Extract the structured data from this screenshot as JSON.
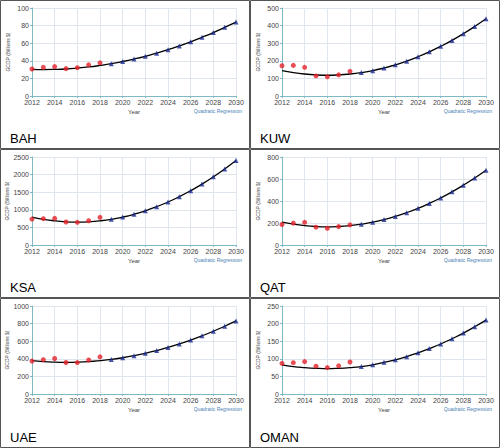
{
  "chart_data": [
    {
      "type": "line",
      "title": "BAH",
      "x_label": "Year",
      "y_label": "GCDP (Billions $)",
      "annotation": "Quadratic Regression",
      "x": [
        2012,
        2013,
        2014,
        2015,
        2016,
        2017,
        2018,
        2019,
        2020,
        2021,
        2022,
        2023,
        2024,
        2025,
        2026,
        2027,
        2028,
        2029,
        2030
      ],
      "xlim": [
        2012,
        2030
      ],
      "xticks": [
        2012,
        2014,
        2016,
        2018,
        2020,
        2022,
        2024,
        2026,
        2028,
        2030
      ],
      "ylim": [
        0,
        100
      ],
      "yticks": [
        0,
        20,
        40,
        60,
        80,
        100
      ],
      "grid": true,
      "series": [
        {
          "type": "scatter",
          "color": "#e3222a",
          "marker": "circle",
          "values": [
            30.7,
            32.5,
            33.4,
            31.1,
            32.2,
            35.4,
            37.7,
            null,
            null,
            null,
            null,
            null,
            null,
            null,
            null,
            null,
            null,
            null,
            null
          ]
        },
        {
          "type": "scatter",
          "color": "#1a2b8f",
          "marker": "triangle",
          "values": [
            null,
            null,
            null,
            null,
            null,
            null,
            null,
            36.7,
            39.2,
            42,
            45.1,
            48.7,
            52.6,
            56.9,
            61.6,
            66.7,
            72.1,
            78,
            84
          ]
        },
        {
          "type": "line",
          "color": "#000000",
          "marker": "none",
          "line_style": "solid",
          "values": [
            30.2,
            30,
            30.2,
            30.7,
            31.7,
            33,
            34.7,
            36.7,
            39.2,
            42,
            45.1,
            48.7,
            52.6,
            56.9,
            61.6,
            66.7,
            72.1,
            78,
            84
          ]
        }
      ]
    },
    {
      "type": "line",
      "title": "KUW",
      "x_label": "Year",
      "y_label": "GCDP (Billions $)",
      "annotation": "Quadratic Regression",
      "x": [
        2012,
        2013,
        2014,
        2015,
        2016,
        2017,
        2018,
        2019,
        2020,
        2021,
        2022,
        2023,
        2024,
        2025,
        2026,
        2027,
        2028,
        2029,
        2030
      ],
      "xlim": [
        2012,
        2030
      ],
      "xticks": [
        2012,
        2014,
        2016,
        2018,
        2020,
        2022,
        2024,
        2026,
        2028,
        2030
      ],
      "ylim": [
        0,
        500
      ],
      "yticks": [
        0,
        100,
        200,
        300,
        400,
        500
      ],
      "grid": true,
      "series": [
        {
          "type": "scatter",
          "color": "#e3222a",
          "marker": "circle",
          "values": [
            172,
            174,
            163,
            114,
            109,
            120,
            140,
            null,
            null,
            null,
            null,
            null,
            null,
            null,
            null,
            null,
            null,
            null,
            null
          ]
        },
        {
          "type": "scatter",
          "color": "#1a2b8f",
          "marker": "triangle",
          "values": [
            null,
            null,
            null,
            null,
            null,
            null,
            null,
            133,
            144,
            159,
            177,
            198,
            223,
            251,
            282,
            316,
            354,
            395,
            439
          ]
        },
        {
          "type": "line",
          "color": "#000000",
          "marker": "none",
          "line_style": "solid",
          "values": [
            144,
            133,
            125,
            120,
            118,
            120,
            125,
            133,
            144,
            159,
            177,
            198,
            223,
            251,
            282,
            316,
            354,
            395,
            439
          ]
        }
      ]
    },
    {
      "type": "line",
      "title": "KSA",
      "x_label": "Year",
      "y_label": "GCDP (Billions $)",
      "annotation": "Quadratic Regression",
      "x": [
        2012,
        2013,
        2014,
        2015,
        2016,
        2017,
        2018,
        2019,
        2020,
        2021,
        2022,
        2023,
        2024,
        2025,
        2026,
        2027,
        2028,
        2029,
        2030
      ],
      "xlim": [
        2012,
        2030
      ],
      "xticks": [
        2012,
        2014,
        2016,
        2018,
        2020,
        2022,
        2024,
        2026,
        2028,
        2030
      ],
      "ylim": [
        0,
        2500
      ],
      "yticks": [
        0,
        500,
        1000,
        1500,
        2000,
        2500
      ],
      "grid": true,
      "series": [
        {
          "type": "scatter",
          "color": "#e3222a",
          "marker": "circle",
          "values": [
            736,
            747,
            756,
            654,
            645,
            689,
            786,
            null,
            null,
            null,
            null,
            null,
            null,
            null,
            null,
            null,
            null,
            null,
            null
          ]
        },
        {
          "type": "scatter",
          "color": "#1a2b8f",
          "marker": "triangle",
          "values": [
            null,
            null,
            null,
            null,
            null,
            null,
            null,
            730,
            793,
            873,
            971,
            1088,
            1221,
            1373,
            1543,
            1730,
            1936,
            2159,
            2400
          ]
        },
        {
          "type": "line",
          "color": "#000000",
          "marker": "none",
          "line_style": "solid",
          "values": [
            793,
            730,
            686,
            659,
            650,
            659,
            686,
            730,
            793,
            873,
            971,
            1088,
            1221,
            1373,
            1543,
            1730,
            1936,
            2159,
            2400
          ]
        }
      ]
    },
    {
      "type": "line",
      "title": "QAT",
      "x_label": "Year",
      "y_label": "GCDP (Billions $)",
      "annotation": "Quadratic Regression",
      "x": [
        2012,
        2013,
        2014,
        2015,
        2016,
        2017,
        2018,
        2019,
        2020,
        2021,
        2022,
        2023,
        2024,
        2025,
        2026,
        2027,
        2028,
        2029,
        2030
      ],
      "xlim": [
        2012,
        2030
      ],
      "xticks": [
        2012,
        2014,
        2016,
        2018,
        2020,
        2022,
        2024,
        2026,
        2028,
        2030
      ],
      "ylim": [
        0,
        800
      ],
      "yticks": [
        0,
        200,
        400,
        600,
        800
      ],
      "grid": true,
      "series": [
        {
          "type": "scatter",
          "color": "#e3222a",
          "marker": "circle",
          "values": [
            186,
            199,
            206,
            162,
            152,
            167,
            183,
            null,
            null,
            null,
            null,
            null,
            null,
            null,
            null,
            null,
            null,
            null,
            null
          ]
        },
        {
          "type": "scatter",
          "color": "#1a2b8f",
          "marker": "triangle",
          "values": [
            null,
            null,
            null,
            null,
            null,
            null,
            null,
            189,
            207,
            231,
            260,
            294,
            333,
            378,
            428,
            483,
            544,
            609,
            680
          ]
        },
        {
          "type": "line",
          "color": "#000000",
          "marker": "none",
          "line_style": "solid",
          "values": [
            207,
            189,
            176,
            168,
            165,
            168,
            176,
            189,
            207,
            231,
            260,
            294,
            333,
            378,
            428,
            483,
            544,
            609,
            680
          ]
        }
      ]
    },
    {
      "type": "line",
      "title": "UAE",
      "x_label": "Year",
      "y_label": "GCDP (Billions $)",
      "annotation": "Quadratic Regression",
      "x": [
        2012,
        2013,
        2014,
        2015,
        2016,
        2017,
        2018,
        2019,
        2020,
        2021,
        2022,
        2023,
        2024,
        2025,
        2026,
        2027,
        2028,
        2029,
        2030
      ],
      "xlim": [
        2012,
        2030
      ],
      "xticks": [
        2012,
        2014,
        2016,
        2018,
        2020,
        2022,
        2024,
        2026,
        2028,
        2030
      ],
      "ylim": [
        0,
        1000
      ],
      "yticks": [
        0,
        200,
        400,
        600,
        800,
        1000
      ],
      "grid": true,
      "series": [
        {
          "type": "scatter",
          "color": "#e3222a",
          "marker": "circle",
          "values": [
            374,
            390,
            403,
            358,
            357,
            386,
            422,
            null,
            null,
            null,
            null,
            null,
            null,
            null,
            null,
            null,
            null,
            null,
            null
          ]
        },
        {
          "type": "scatter",
          "color": "#1a2b8f",
          "marker": "triangle",
          "values": [
            null,
            null,
            null,
            null,
            null,
            null,
            null,
            393,
            412,
            435,
            462,
            494,
            529,
            569,
            613,
            661,
            713,
            770,
            830
          ]
        },
        {
          "type": "line",
          "color": "#000000",
          "marker": "none",
          "line_style": "solid",
          "values": [
            379,
            368,
            362,
            360,
            362,
            368,
            379,
            393,
            412,
            435,
            462,
            494,
            529,
            569,
            613,
            661,
            713,
            770,
            830
          ]
        }
      ]
    },
    {
      "type": "line",
      "title": "OMAN",
      "x_label": "Year",
      "y_label": "GCDP (Billions $)",
      "annotation": "Quadratic Regression",
      "x": [
        2012,
        2013,
        2014,
        2015,
        2016,
        2017,
        2018,
        2019,
        2020,
        2021,
        2022,
        2023,
        2024,
        2025,
        2026,
        2027,
        2028,
        2029,
        2030
      ],
      "xlim": [
        2012,
        2030
      ],
      "xticks": [
        2012,
        2014,
        2016,
        2018,
        2020,
        2022,
        2024,
        2026,
        2028,
        2030
      ],
      "ylim": [
        0,
        250
      ],
      "yticks": [
        0,
        50,
        100,
        150,
        200,
        250
      ],
      "grid": true,
      "series": [
        {
          "type": "scatter",
          "color": "#e3222a",
          "marker": "circle",
          "values": [
            87,
            89,
            92,
            79,
            75,
            80,
            91,
            null,
            null,
            null,
            null,
            null,
            null,
            null,
            null,
            null,
            null,
            null,
            null
          ]
        },
        {
          "type": "scatter",
          "color": "#1a2b8f",
          "marker": "triangle",
          "values": [
            null,
            null,
            null,
            null,
            null,
            null,
            null,
            78,
            83,
            90,
            97,
            106,
            117,
            129,
            142,
            157,
            173,
            191,
            210
          ]
        },
        {
          "type": "line",
          "color": "#000000",
          "marker": "none",
          "line_style": "solid",
          "values": [
            83,
            78,
            75,
            73,
            72,
            73,
            75,
            78,
            83,
            90,
            97,
            106,
            117,
            129,
            142,
            157,
            173,
            191,
            210
          ]
        }
      ]
    }
  ]
}
